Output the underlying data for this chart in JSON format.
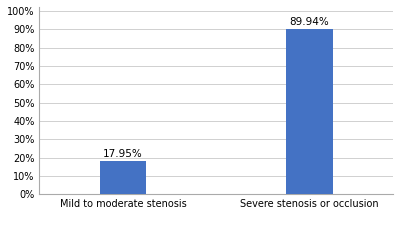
{
  "categories": [
    "Mild to moderate stenosis",
    "Severe stenosis or occlusion"
  ],
  "values": [
    17.95,
    89.94
  ],
  "labels": [
    "17.95%",
    "89.94%"
  ],
  "bar_color": "#4472C4",
  "ylim": [
    0,
    100
  ],
  "yticks": [
    0,
    10,
    20,
    30,
    40,
    50,
    60,
    70,
    80,
    90,
    100
  ],
  "yticklabels": [
    "0%",
    "10%",
    "20%",
    "30%",
    "40%",
    "50%",
    "60%",
    "70%",
    "80%",
    "90%",
    "100%"
  ],
  "background_color": "#ffffff",
  "grid_color": "#d0d0d0",
  "bar_width": 0.25,
  "label_fontsize": 7.5,
  "tick_fontsize": 7,
  "legend_fontsize": 8,
  "x_positions": [
    0,
    1
  ]
}
